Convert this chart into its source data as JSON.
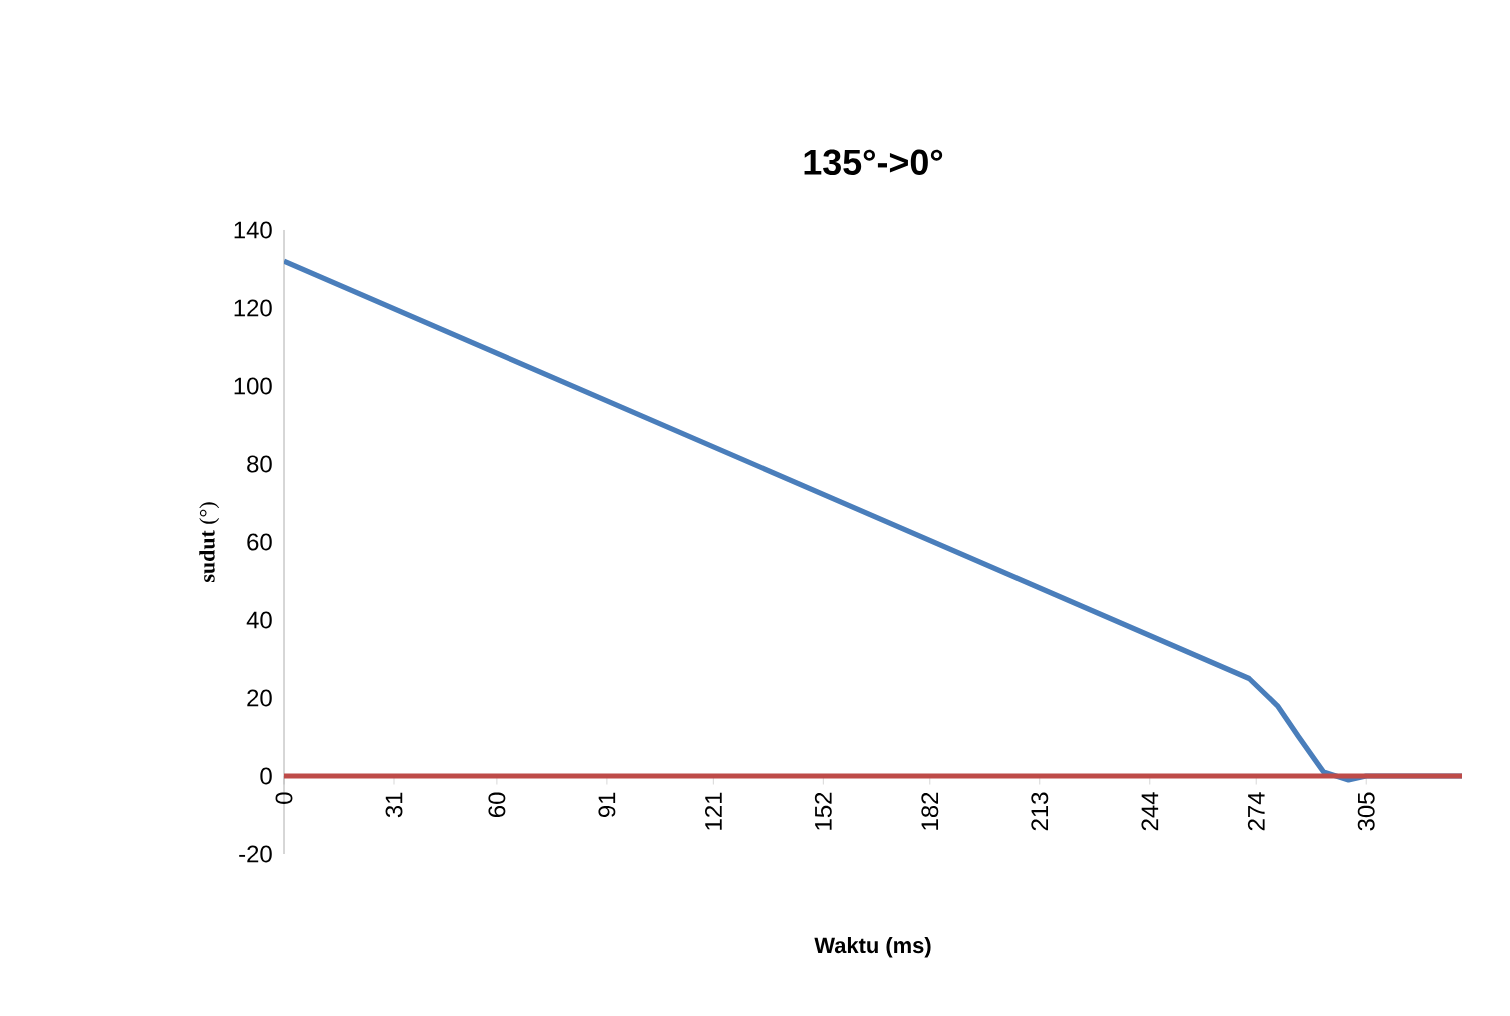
{
  "chart_data": {
    "type": "line",
    "title": "135°->0°",
    "xlabel": "Waktu (ms)",
    "ylabel": "**sudut** (°)",
    "xlim": [
      0,
      332
    ],
    "xticks": [
      0,
      31,
      60,
      91,
      121,
      152,
      182,
      213,
      244,
      274,
      305
    ],
    "ylim": [
      -20,
      140
    ],
    "yticks": [
      -20,
      0,
      20,
      40,
      60,
      80,
      100,
      120,
      140
    ],
    "grid": false,
    "series": [
      {
        "color": "#4a7ebb",
        "x": [
          0,
          272,
          280,
          286,
          293,
          300,
          305,
          332
        ],
        "values": [
          132,
          25,
          18,
          10,
          1,
          -1,
          0,
          0
        ]
      },
      {
        "color": "#be4b48",
        "x": [
          0,
          332
        ],
        "values": [
          0,
          0
        ]
      }
    ]
  }
}
